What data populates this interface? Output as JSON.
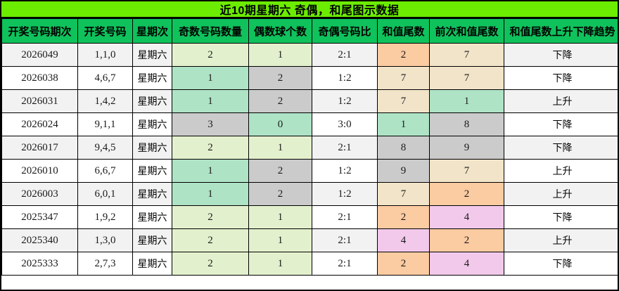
{
  "title": "近10期星期六 奇偶，和尾图示数据",
  "palette": {
    "title_bg": "#6CEC00",
    "header_bg": "#0FC25C",
    "row_alt_bg": "#F2F2F2",
    "row_bg": "#FFFFFF",
    "yellow_green": "#E3F0CD",
    "mint": "#AEE3C6",
    "gray": "#CBCBCB",
    "tan": "#F2E4C9",
    "orange": "#FBCBA1",
    "pink": "#F2C9EB"
  },
  "columns": [
    "开奖号码期次",
    "开奖号码",
    "星期次",
    "奇数号码数量",
    "偶数球个数",
    "奇偶号码比",
    "和值尾数",
    "前次和值尾数",
    "和值尾数上升下降趋势"
  ],
  "rows": [
    {
      "period": "2026049",
      "numbers": "1,1,0",
      "week": "星期六",
      "odd": "2",
      "even": "1",
      "ratio": "2:1",
      "sum": "2",
      "prev": "7",
      "trend": "下降",
      "odd_bg": "yellow_green",
      "even_bg": "yellow_green",
      "sum_bg": "orange",
      "prev_bg": "tan"
    },
    {
      "period": "2026038",
      "numbers": "4,6,7",
      "week": "星期六",
      "odd": "1",
      "even": "2",
      "ratio": "1:2",
      "sum": "7",
      "prev": "7",
      "trend": "下降",
      "odd_bg": "mint",
      "even_bg": "gray",
      "sum_bg": "tan",
      "prev_bg": "tan"
    },
    {
      "period": "2026031",
      "numbers": "1,4,2",
      "week": "星期六",
      "odd": "1",
      "even": "2",
      "ratio": "1:2",
      "sum": "7",
      "prev": "1",
      "trend": "上升",
      "odd_bg": "mint",
      "even_bg": "gray",
      "sum_bg": "tan",
      "prev_bg": "mint"
    },
    {
      "period": "2026024",
      "numbers": "9,1,1",
      "week": "星期六",
      "odd": "3",
      "even": "0",
      "ratio": "3:0",
      "sum": "1",
      "prev": "8",
      "trend": "下降",
      "odd_bg": "gray",
      "even_bg": "mint",
      "sum_bg": "mint",
      "prev_bg": "gray"
    },
    {
      "period": "2026017",
      "numbers": "9,4,5",
      "week": "星期六",
      "odd": "2",
      "even": "1",
      "ratio": "2:1",
      "sum": "8",
      "prev": "9",
      "trend": "下降",
      "odd_bg": "yellow_green",
      "even_bg": "yellow_green",
      "sum_bg": "gray",
      "prev_bg": "gray"
    },
    {
      "period": "2026010",
      "numbers": "6,6,7",
      "week": "星期六",
      "odd": "1",
      "even": "2",
      "ratio": "1:2",
      "sum": "9",
      "prev": "7",
      "trend": "上升",
      "odd_bg": "mint",
      "even_bg": "gray",
      "sum_bg": "gray",
      "prev_bg": "tan"
    },
    {
      "period": "2026003",
      "numbers": "6,0,1",
      "week": "星期六",
      "odd": "1",
      "even": "2",
      "ratio": "1:2",
      "sum": "7",
      "prev": "2",
      "trend": "上升",
      "odd_bg": "mint",
      "even_bg": "gray",
      "sum_bg": "tan",
      "prev_bg": "orange"
    },
    {
      "period": "2025347",
      "numbers": "1,9,2",
      "week": "星期六",
      "odd": "2",
      "even": "1",
      "ratio": "2:1",
      "sum": "2",
      "prev": "4",
      "trend": "下降",
      "odd_bg": "yellow_green",
      "even_bg": "yellow_green",
      "sum_bg": "orange",
      "prev_bg": "pink"
    },
    {
      "period": "2025340",
      "numbers": "1,3,0",
      "week": "星期六",
      "odd": "2",
      "even": "1",
      "ratio": "2:1",
      "sum": "4",
      "prev": "2",
      "trend": "上升",
      "odd_bg": "yellow_green",
      "even_bg": "yellow_green",
      "sum_bg": "pink",
      "prev_bg": "orange"
    },
    {
      "period": "2025333",
      "numbers": "2,7,3",
      "week": "星期六",
      "odd": "2",
      "even": "1",
      "ratio": "2:1",
      "sum": "2",
      "prev": "4",
      "trend": "下降",
      "odd_bg": "yellow_green",
      "even_bg": "yellow_green",
      "sum_bg": "orange",
      "prev_bg": "pink"
    }
  ]
}
